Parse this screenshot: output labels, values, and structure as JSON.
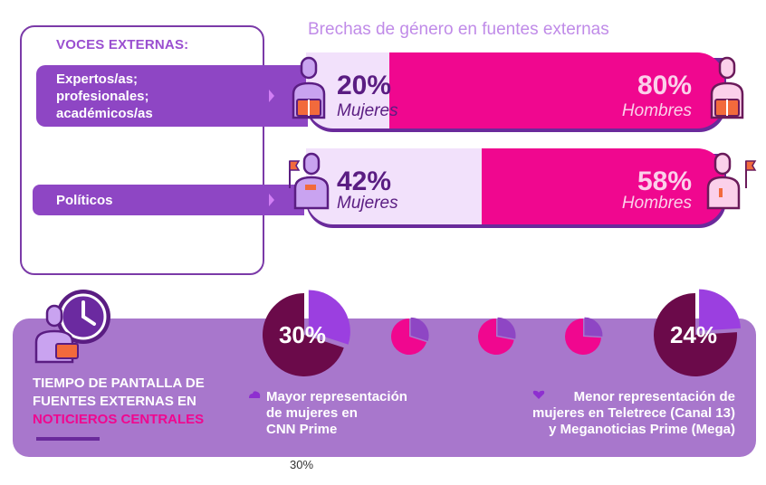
{
  "chart_title": "Brechas de género en fuentes externas",
  "voces": {
    "title": "VOCES EXTERNAS:",
    "categories": [
      "Expertos/as; profesionales; académicos/as",
      "Políticos"
    ]
  },
  "chart_data": [
    {
      "type": "bar",
      "title": "Brechas de género en fuentes externas",
      "categories": [
        "Expertos/as; profesionales; académicos/as",
        "Políticos"
      ],
      "series": [
        {
          "name": "Mujeres",
          "values": [
            20,
            42
          ]
        },
        {
          "name": "Hombres",
          "values": [
            80,
            58
          ]
        }
      ],
      "labels": {
        "women": [
          "20%",
          "42%"
        ],
        "men": [
          "80%",
          "58%"
        ]
      },
      "ylim": [
        0,
        100
      ]
    },
    {
      "type": "pie",
      "title": "TIEMPO DE PANTALLA DE FUENTES EXTERNAS EN NOTICIEROS CENTRALES",
      "slices": [
        {
          "value": 30,
          "label": "30%",
          "caption": "Mayor representación de mujeres en CNN Prime"
        },
        {
          "value": 30,
          "label": ""
        },
        {
          "value": 28,
          "label": ""
        },
        {
          "value": 26,
          "label": ""
        },
        {
          "value": 24,
          "label": "24%",
          "caption": "Menor representación de mujeres en Teletrece (Canal 13) y Meganoticias Prime (Mega)"
        }
      ]
    }
  ],
  "bar_labels": {
    "women": "Mujeres",
    "men": "Hombres"
  },
  "tiempo": {
    "line1": "TIEMPO DE PANTALLA DE",
    "line2": "FUENTES EXTERNAS EN",
    "line3": "NOTICIEROS CENTRALES"
  },
  "captions": {
    "left": [
      "Mayor representación",
      "de mujeres en",
      "CNN Prime"
    ],
    "right": [
      "Menor representación de",
      "mujeres en Teletrece (Canal 13)",
      "y Meganoticias Prime (Mega)"
    ]
  },
  "footnote": "30%",
  "colors": {
    "purple_dark": "#5a1d82",
    "purple": "#8e46c4",
    "magenta": "#f0078f",
    "lilac": "#f2e1fb",
    "panel": "#a877cc",
    "pie_dark": "#6b0a4a"
  },
  "icons": [
    "person-book-icon",
    "person-flag-icon",
    "clock-icon",
    "person-laptop-icon"
  ]
}
